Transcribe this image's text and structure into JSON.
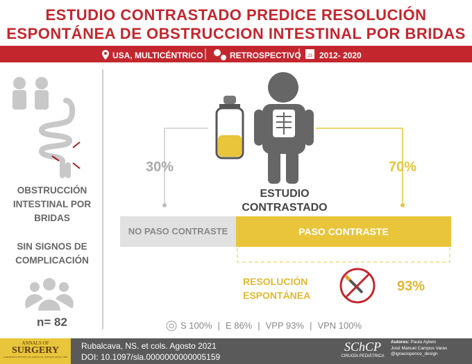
{
  "header": {
    "title_lines": [
      "ESTUDIO CONTRASTADO PREDICE RESOLUCIÓN",
      "ESPONTÁNEA DE OBSTRUCCION INTESTINAL POR BRIDAS"
    ],
    "info": [
      "USA, MULTICÉNTRICO",
      "RETROSPECTIVO",
      "2012- 2020"
    ],
    "calendar_day": "23"
  },
  "left": {
    "condition": "OBSTRUCCIÓN INTESTINAL POR BRIDAS",
    "criteria": "SIN SIGNOS DE COMPLICACIÓN",
    "n": "n= 82"
  },
  "study": {
    "label": "ESTUDIO CONTRASTADO",
    "no_pass_pct": "30%",
    "pass_pct": "70%",
    "no_pass": "NO PASO CONTRASTE",
    "pass": "PASO CONTRASTE",
    "outcome": "RESOLUCIÓN ESPONTÁNEA",
    "outcome_pct": "93%"
  },
  "stats": [
    "S 100%",
    "E 86%",
    "VPP 93%",
    "VPN 100%"
  ],
  "footer": {
    "journal_top": "ANNALS OF",
    "journal_main": "SURGERY",
    "journal_sub": "A MONTHLY REVIEW OF SURGICAL SCIENCE SINCE 1885",
    "citation": "Rubalcava, NS. et cols. Agosto 2021",
    "doi": "DOI: 10.1097/sla.0000000000005159",
    "logo": "SChCP",
    "logo_sub": "CIRUGÍA PEDIÁTRICA",
    "authors_label": "Autores:",
    "authors": [
      "Paula Aylwin",
      "José Manuel Campos Varas",
      "@ignacioponce_design"
    ]
  }
}
